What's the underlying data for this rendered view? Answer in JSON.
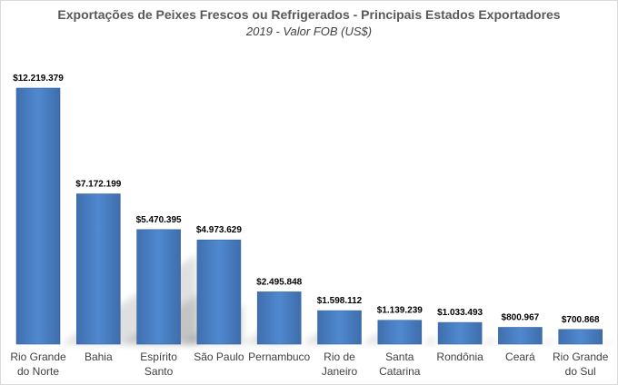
{
  "chart_data": {
    "type": "bar",
    "title": "Exportações de Peixes Frescos ou Refrigerados - Principais Estados Exportadores",
    "subtitle": "2019 - Valor FOB (US$)",
    "xlabel": "",
    "ylabel": "",
    "ylim": [
      0,
      12219379
    ],
    "grid": false,
    "legend": "none",
    "bar_color": "#4a7ebb",
    "categories": [
      [
        "Rio Grande",
        "do Norte"
      ],
      [
        "Bahia"
      ],
      [
        "Espírito",
        "Santo"
      ],
      [
        "São Paulo"
      ],
      [
        "Pernambuco"
      ],
      [
        "Rio de",
        "Janeiro"
      ],
      [
        "Santa",
        "Catarina"
      ],
      [
        "Rondônia"
      ],
      [
        "Ceará"
      ],
      [
        "Rio Grande",
        "do Sul"
      ]
    ],
    "values": [
      12219379,
      7172199,
      5470395,
      4973629,
      2495848,
      1598112,
      1139239,
      1033493,
      800967,
      700868
    ],
    "data_labels": [
      "$12.219.379",
      "$7.172.199",
      "$5.470.395",
      "$4.973.629",
      "$2.495.848",
      "$1.598.112",
      "$1.139.239",
      "$1.033.493",
      "$800.967",
      "$700.868"
    ]
  }
}
